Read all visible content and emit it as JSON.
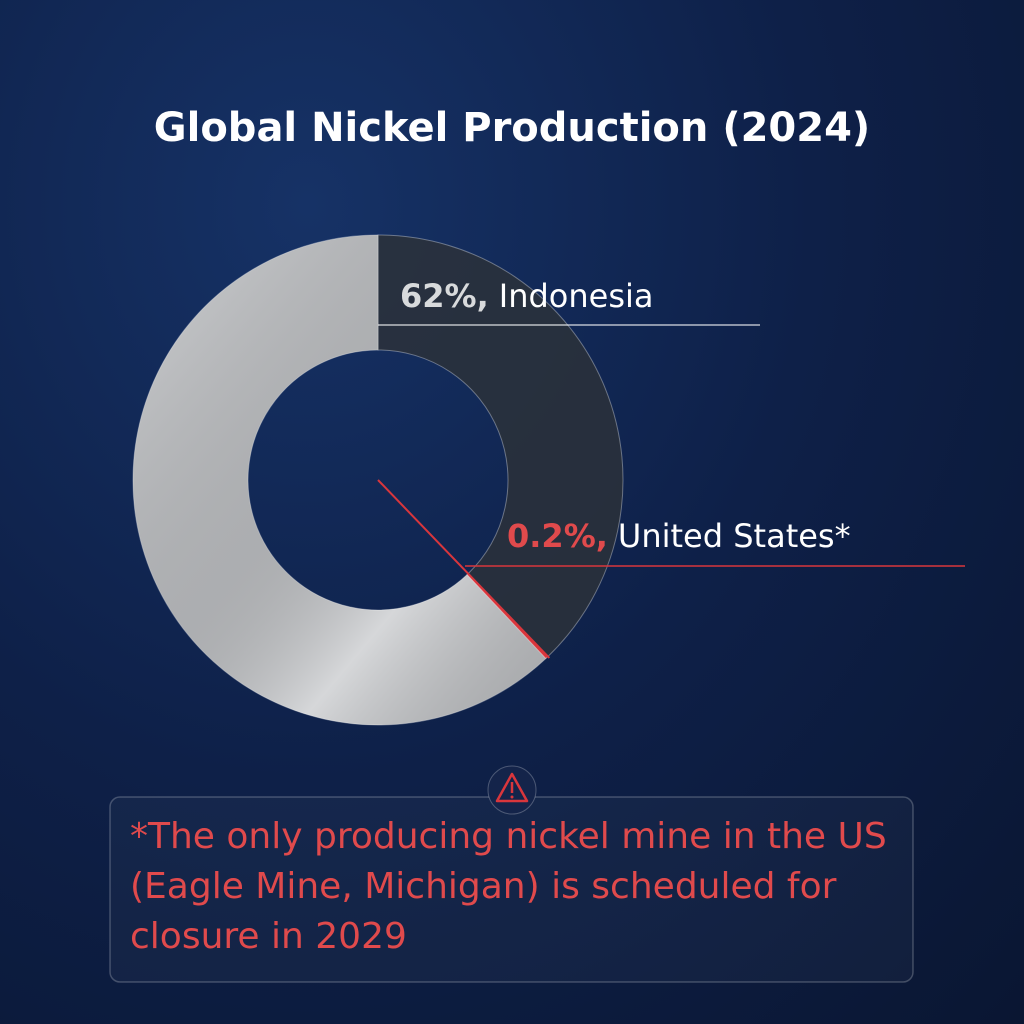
{
  "chart_data": {
    "type": "donut",
    "title": "Global Nickel Production (2024)",
    "categories": [
      null,
      "United States*",
      "Indonesia"
    ],
    "values": [
      37.8,
      0.2,
      62
    ],
    "value_labels": [
      null,
      "0.2%,",
      "62%,"
    ],
    "colors": [
      "#2b3139",
      "#d9363c",
      "#c4c6c9"
    ],
    "annotation": "*The only producing nickel mine in the US (Eagle Mine, Michigan) is scheduled for closure in 2029"
  }
}
